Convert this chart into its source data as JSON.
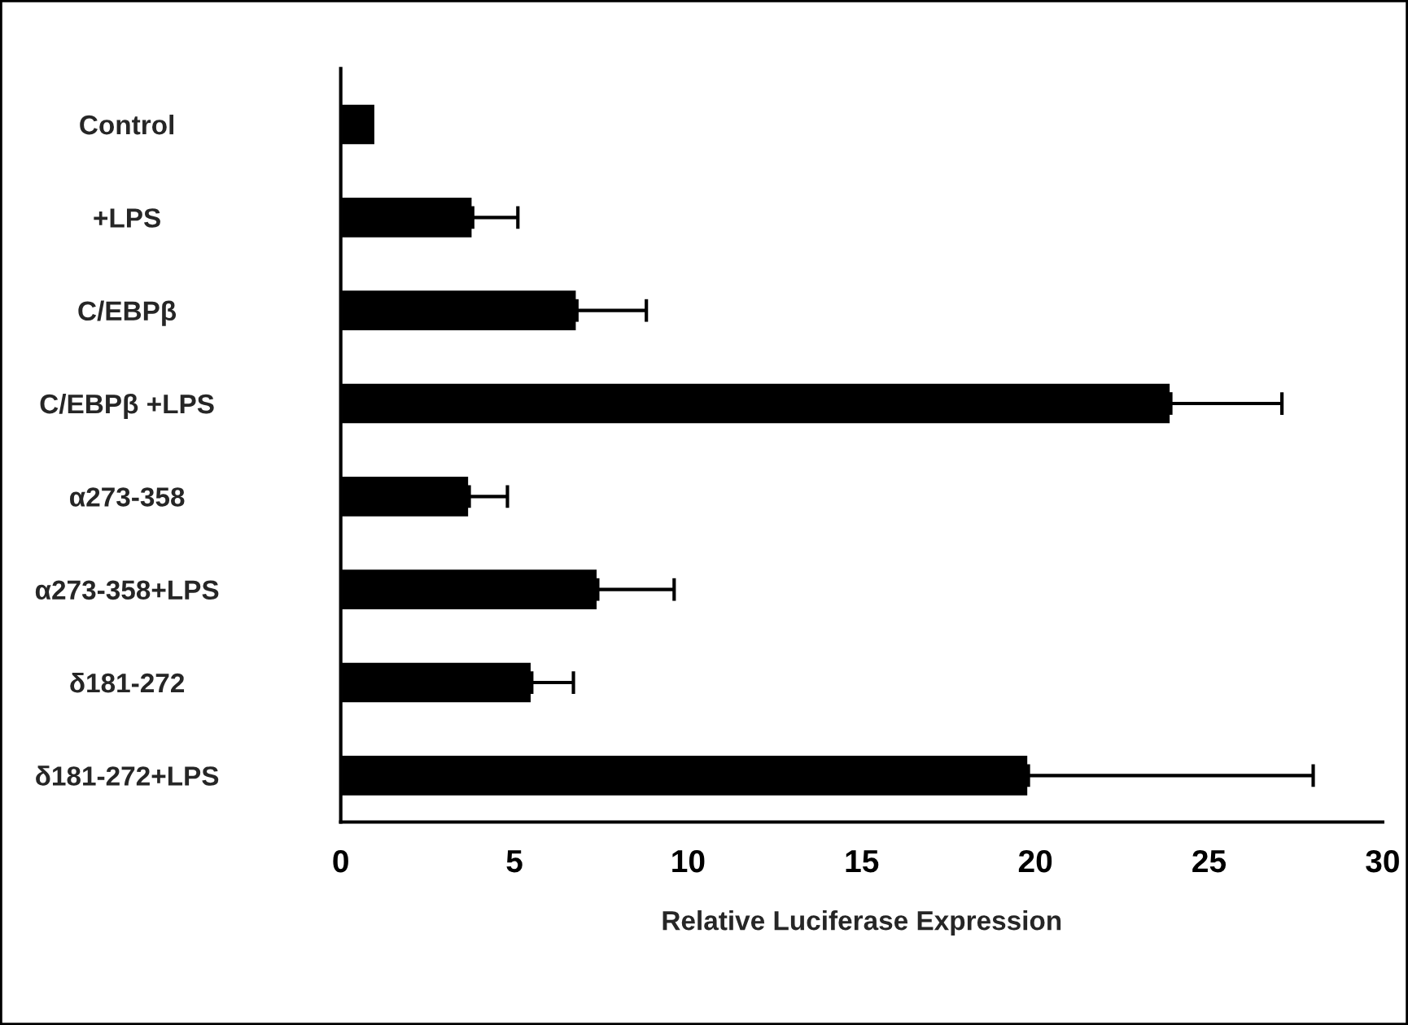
{
  "chart_data": {
    "type": "bar",
    "orientation": "horizontal",
    "xlabel": "Relative Luciferase Expression",
    "categories": [
      "Control",
      "+LPS",
      "C/EBPβ",
      "C/EBPβ +LPS",
      "α273-358",
      "α273-358+LPS",
      "δ181-272",
      "δ181-272+LPS"
    ],
    "values": [
      1.0,
      3.8,
      6.8,
      23.9,
      3.7,
      7.4,
      5.5,
      19.8
    ],
    "errors": [
      null,
      [
        3.8,
        5.1
      ],
      [
        6.8,
        8.8
      ],
      [
        23.9,
        27.1
      ],
      [
        3.7,
        4.8
      ],
      [
        7.4,
        9.6
      ],
      [
        5.5,
        6.7
      ],
      [
        19.8,
        28.0
      ]
    ],
    "color": "#000000",
    "xlim": [
      0,
      30
    ],
    "xticks": [
      0,
      5,
      10,
      15,
      20,
      25,
      30
    ],
    "grid": false,
    "legend": false
  }
}
